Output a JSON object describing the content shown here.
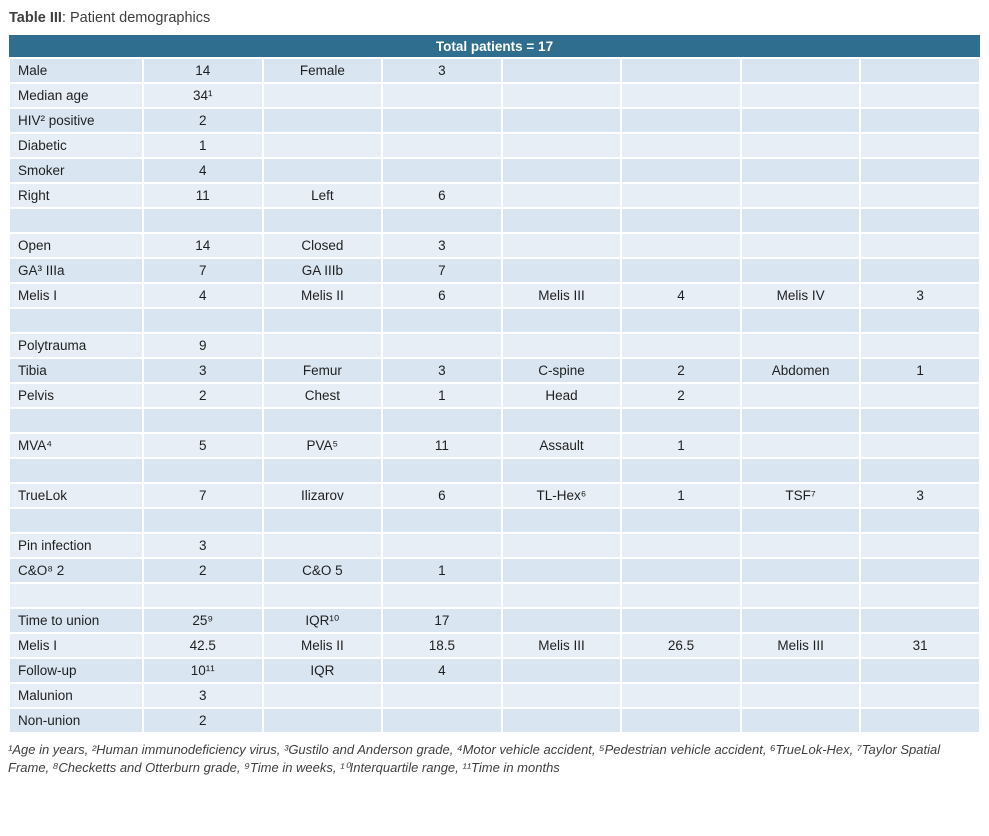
{
  "title": {
    "bold": "Table III",
    "rest": ": Patient demographics"
  },
  "table": {
    "header": "Total patients = 17",
    "columns": 8,
    "rows": [
      [
        "Male",
        "14",
        "Female",
        "3",
        "",
        "",
        "",
        ""
      ],
      [
        "Median age",
        "34¹",
        "",
        "",
        "",
        "",
        "",
        ""
      ],
      [
        "HIV² positive",
        "2",
        "",
        "",
        "",
        "",
        "",
        ""
      ],
      [
        "Diabetic",
        "1",
        "",
        "",
        "",
        "",
        "",
        ""
      ],
      [
        "Smoker",
        "4",
        "",
        "",
        "",
        "",
        "",
        ""
      ],
      [
        "Right",
        "11",
        "Left",
        "6",
        "",
        "",
        "",
        ""
      ],
      [
        "",
        "",
        "",
        "",
        "",
        "",
        "",
        ""
      ],
      [
        "Open",
        "14",
        "Closed",
        "3",
        "",
        "",
        "",
        ""
      ],
      [
        "GA³ IIIa",
        "7",
        "GA IIIb",
        "7",
        "",
        "",
        "",
        ""
      ],
      [
        "Melis I",
        "4",
        "Melis II",
        "6",
        "Melis III",
        "4",
        "Melis IV",
        "3"
      ],
      [
        "",
        "",
        "",
        "",
        "",
        "",
        "",
        ""
      ],
      [
        "Polytrauma",
        "9",
        "",
        "",
        "",
        "",
        "",
        ""
      ],
      [
        "Tibia",
        "3",
        "Femur",
        "3",
        "C-spine",
        "2",
        "Abdomen",
        "1"
      ],
      [
        "Pelvis",
        "2",
        "Chest",
        "1",
        "Head",
        "2",
        "",
        ""
      ],
      [
        "",
        "",
        "",
        "",
        "",
        "",
        "",
        ""
      ],
      [
        "MVA⁴",
        "5",
        "PVA⁵",
        "11",
        "Assault",
        "1",
        "",
        ""
      ],
      [
        "",
        "",
        "",
        "",
        "",
        "",
        "",
        ""
      ],
      [
        "TrueLok",
        "7",
        "Ilizarov",
        "6",
        "TL-Hex⁶",
        "1",
        "TSF⁷",
        "3"
      ],
      [
        "",
        "",
        "",
        "",
        "",
        "",
        "",
        ""
      ],
      [
        "Pin infection",
        "3",
        "",
        "",
        "",
        "",
        "",
        ""
      ],
      [
        "C&O⁸ 2",
        "2",
        "C&O 5",
        "1",
        "",
        "",
        "",
        ""
      ],
      [
        "",
        "",
        "",
        "",
        "",
        "",
        "",
        ""
      ],
      [
        "Time to union",
        "25⁹",
        "IQR¹⁰",
        "17",
        "",
        "",
        "",
        ""
      ],
      [
        "Melis I",
        "42.5",
        "Melis II",
        "18.5",
        "Melis III",
        "26.5",
        "Melis III",
        "31"
      ],
      [
        "Follow-up",
        "10¹¹",
        "IQR",
        "4",
        "",
        "",
        "",
        ""
      ],
      [
        "Malunion",
        "3",
        "",
        "",
        "",
        "",
        "",
        ""
      ],
      [
        "Non-union",
        "2",
        "",
        "",
        "",
        "",
        "",
        ""
      ]
    ]
  },
  "footnote": "¹Age in years, ²Human immunodeficiency virus, ³Gustilo and Anderson grade, ⁴Motor vehicle accident, ⁵Pedestrian vehicle accident, ⁶TrueLok-Hex, ⁷Taylor Spatial Frame, ⁸Checketts and Otterburn grade, ⁹Time in weeks, ¹⁰Interquartile range, ¹¹Time in months",
  "colors": {
    "header_bg": "#2f6e8f",
    "header_text": "#ffffff",
    "row_band_a": "#d9e6f1",
    "row_band_b": "#e7eef6",
    "text": "#1f1f1f"
  }
}
